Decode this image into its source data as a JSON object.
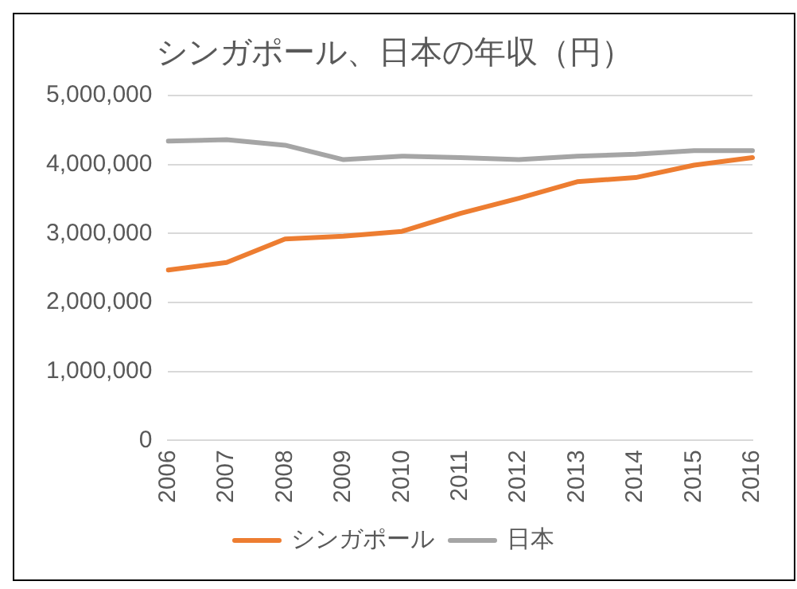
{
  "chart_data": {
    "type": "line",
    "title": "シンガポール、日本の年収（円）",
    "categories": [
      "2006",
      "2007",
      "2008",
      "2009",
      "2010",
      "2011",
      "2012",
      "2013",
      "2014",
      "2015",
      "2016"
    ],
    "series": [
      {
        "name": "シンガポール",
        "color": "#ed7d31",
        "values": [
          2470000,
          2580000,
          2920000,
          2960000,
          3030000,
          3290000,
          3510000,
          3750000,
          3810000,
          3990000,
          4100000
        ]
      },
      {
        "name": "日本",
        "color": "#a5a5a5",
        "values": [
          4340000,
          4360000,
          4280000,
          4070000,
          4120000,
          4100000,
          4070000,
          4120000,
          4150000,
          4200000,
          4200000
        ]
      }
    ],
    "ylim": [
      0,
      5000000
    ],
    "yticks": [
      0,
      {
        "value": 1000000,
        "label": "1,000,000"
      },
      {
        "value": 2000000,
        "label": "2,000,000"
      },
      {
        "value": 3000000,
        "label": "3,000,000"
      },
      {
        "value": 4000000,
        "label": "4,000,000"
      },
      {
        "value": 5000000,
        "label": "5,000,000"
      }
    ],
    "grid": "y",
    "legend": "bottom",
    "marker": "none",
    "line_style": "solid"
  }
}
